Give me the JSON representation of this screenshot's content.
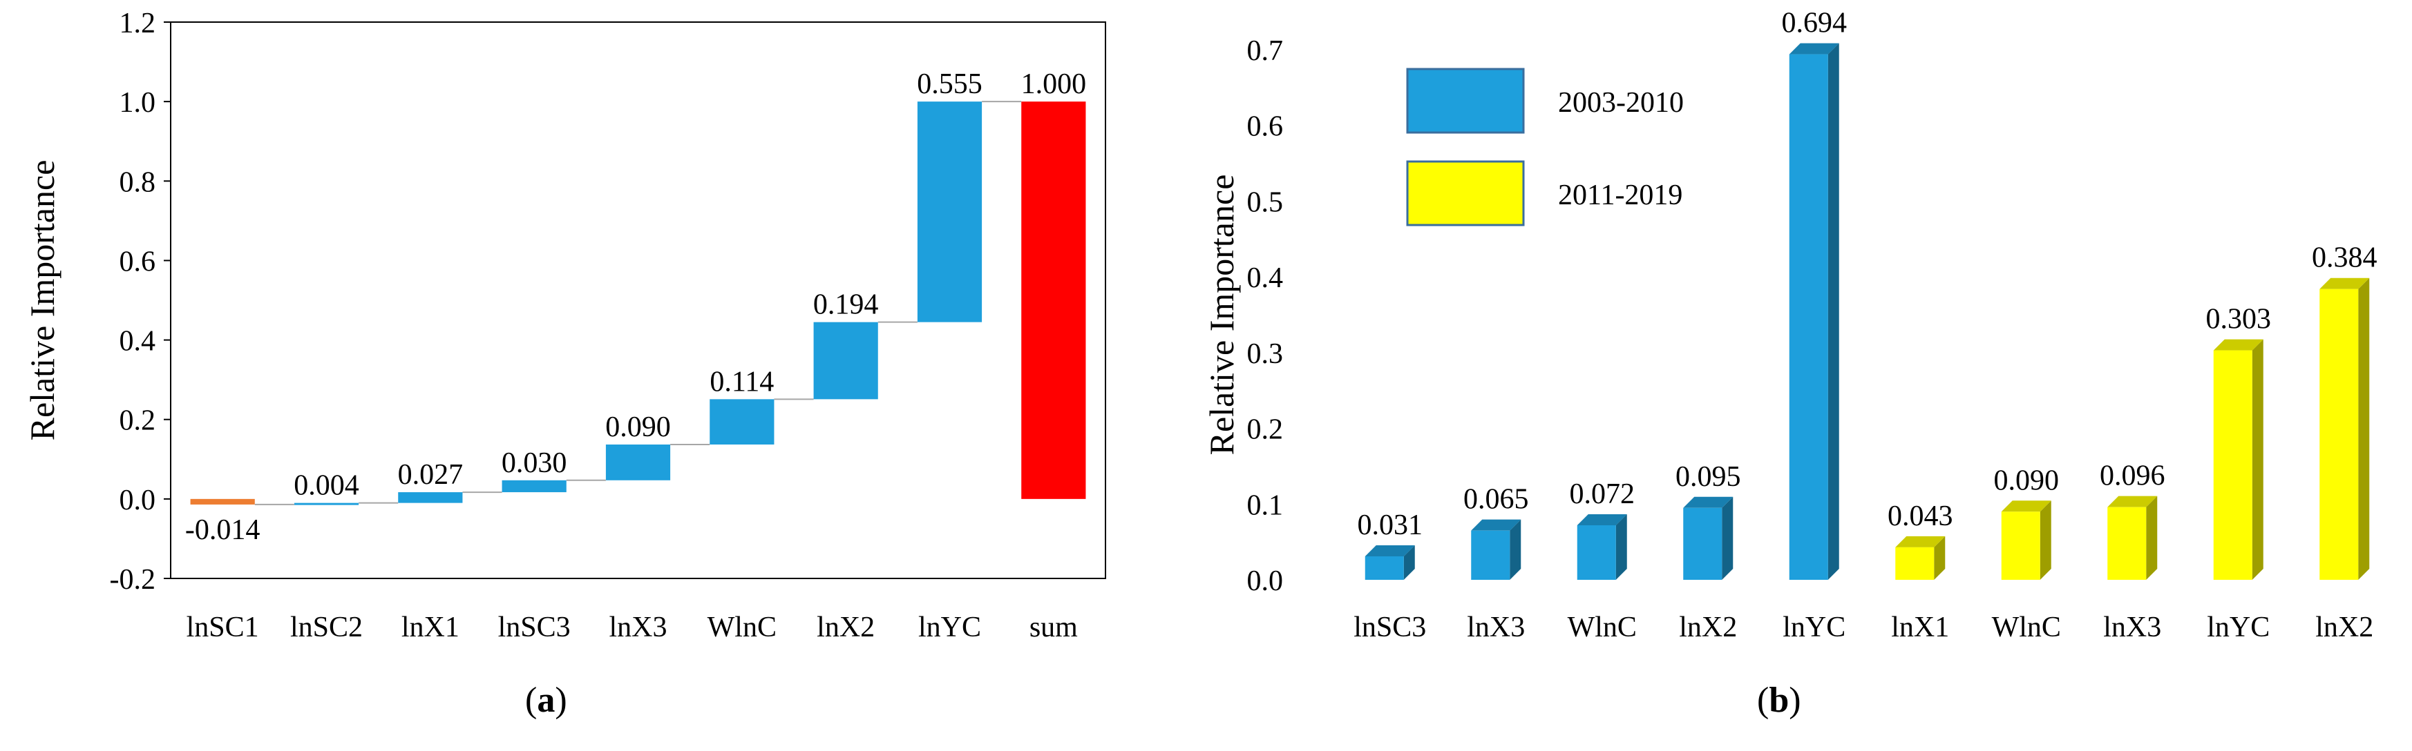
{
  "captions": {
    "a": "a",
    "b": "b"
  },
  "colors": {
    "positive": "#1e9fdc",
    "negative": "#ed7d31",
    "sum": "#ff0000",
    "series1": "#1e9fdc",
    "series2": "#ffff00"
  },
  "chart_data": [
    {
      "type": "bar",
      "subtype": "waterfall",
      "ylabel": "Relative Importance",
      "ylim": [
        -0.2,
        1.2
      ],
      "yticks": [
        "1.2",
        "1.0",
        "0.8",
        "0.6",
        "0.4",
        "0.2",
        "0.0",
        "-0.2"
      ],
      "categories": [
        "lnSC1",
        "lnSC2",
        "lnX1",
        "lnSC3",
        "lnX3",
        "WlnC",
        "lnX2",
        "lnYC",
        "sum"
      ],
      "values": [
        -0.014,
        0.004,
        0.027,
        0.03,
        0.09,
        0.114,
        0.194,
        0.555,
        1.0
      ],
      "value_labels": [
        "-0.014",
        "0.004",
        "0.027",
        "0.030",
        "0.090",
        "0.114",
        "0.194",
        "0.555",
        "1.000"
      ],
      "total_index": 8,
      "grid": false
    },
    {
      "type": "bar",
      "subtype": "3d",
      "ylabel": "Relative Importance",
      "ylim": [
        0,
        0.7
      ],
      "yticks": [
        "0.7",
        "0.6",
        "0.5",
        "0.4",
        "0.3",
        "0.2",
        "0.1",
        "0.0"
      ],
      "categories": [
        "lnSC3",
        "lnX3",
        "WlnC",
        "lnX2",
        "lnYC",
        "lnX1",
        "WlnC",
        "lnX3",
        "lnYC",
        "lnX2"
      ],
      "values": [
        0.031,
        0.065,
        0.072,
        0.095,
        0.694,
        0.043,
        0.09,
        0.096,
        0.303,
        0.384
      ],
      "value_labels": [
        "0.031",
        "0.065",
        "0.072",
        "0.095",
        "0.694",
        "0.043",
        "0.090",
        "0.096",
        "0.303",
        "0.384"
      ],
      "series_index": [
        0,
        0,
        0,
        0,
        0,
        1,
        1,
        1,
        1,
        1
      ],
      "series": [
        {
          "name": "2003-2010"
        },
        {
          "name": "2011-2019"
        }
      ],
      "legend": "top-left",
      "grid": false
    }
  ]
}
